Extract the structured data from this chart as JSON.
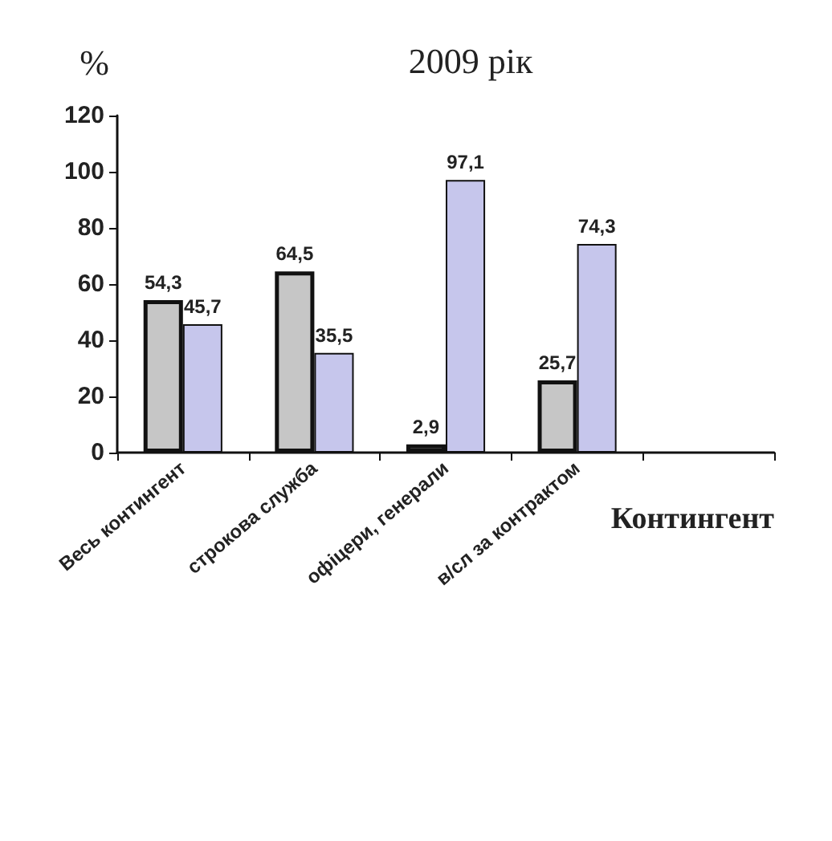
{
  "chart_data": {
    "type": "bar",
    "title": "2009 рік",
    "ylabel": "%",
    "xlabel": "Контингент",
    "categories": [
      "Весь контингент",
      "строкова служба",
      "офіцери, генерали",
      "в/сл за контрактом",
      null
    ],
    "series": [
      {
        "color": "#c6c6c6",
        "values": [
          54.3,
          64.5,
          2.9,
          25.7,
          null
        ],
        "value_labels": [
          "54,3",
          "64,5",
          "2,9",
          "25,7",
          null
        ]
      },
      {
        "color": "#c6c6ec",
        "values": [
          45.7,
          35.5,
          97.1,
          74.3,
          null
        ],
        "value_labels": [
          "45,7",
          "35,5",
          "97,1",
          "74,3",
          null
        ]
      }
    ],
    "ylim": [
      0,
      120
    ],
    "yticks": [
      0,
      20,
      40,
      60,
      80,
      100,
      120
    ],
    "grid": false
  }
}
